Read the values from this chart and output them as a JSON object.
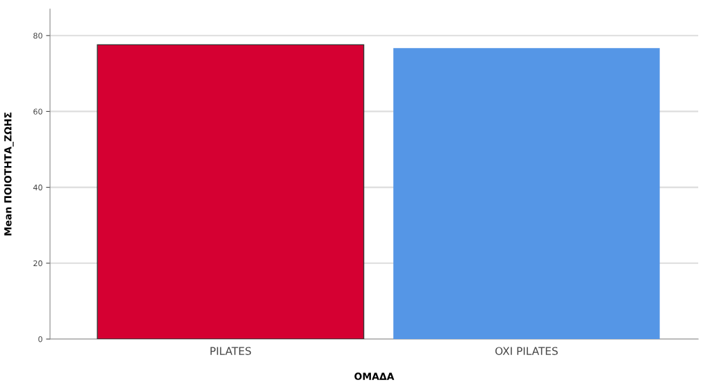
{
  "chart_data": {
    "type": "bar",
    "xlabel": "ΟΜΑΔΑ",
    "ylabel": "Mean ΠΟΙΟΤΗΤΑ_ΖΩΗΣ",
    "categories": [
      "PILATES",
      "OXI PILATES"
    ],
    "values": [
      77.6,
      76.7
    ],
    "colors": [
      "#d50032",
      "#5596e6"
    ],
    "ylim": [
      0,
      87
    ],
    "yticks": [
      0,
      20,
      40,
      60,
      80
    ],
    "grid": "y"
  }
}
